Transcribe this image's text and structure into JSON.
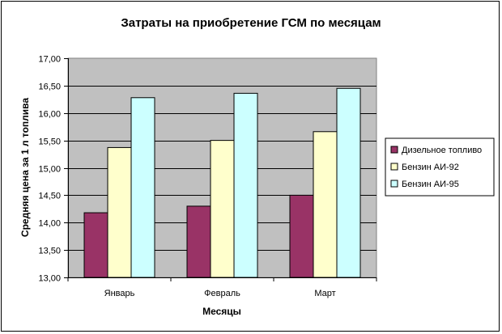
{
  "chart_data": {
    "type": "bar",
    "title": "Затраты на приобретение ГСМ по месяцам",
    "xlabel": "Месяцы",
    "ylabel": "Средняя цена за 1 л топлива",
    "categories": [
      "Январь",
      "Февраль",
      "Март"
    ],
    "series": [
      {
        "name": "Дизельное топливо",
        "color": "#993366",
        "values": [
          14.18,
          14.3,
          14.5
        ]
      },
      {
        "name": "Бензин АИ-92",
        "color": "#FFFFCC",
        "values": [
          15.37,
          15.5,
          15.66
        ]
      },
      {
        "name": "Бензин АИ-95",
        "color": "#CCFFFF",
        "values": [
          16.28,
          16.36,
          16.45
        ]
      }
    ],
    "ylim": [
      13.0,
      17.0
    ],
    "ytick_step": 0.5,
    "ytick_labels": [
      "13,00",
      "13,50",
      "14,00",
      "14,50",
      "15,00",
      "15,50",
      "16,00",
      "16,50",
      "17,00"
    ],
    "grid": true,
    "plot_background": "#C0C0C0",
    "legend_position": "right"
  }
}
